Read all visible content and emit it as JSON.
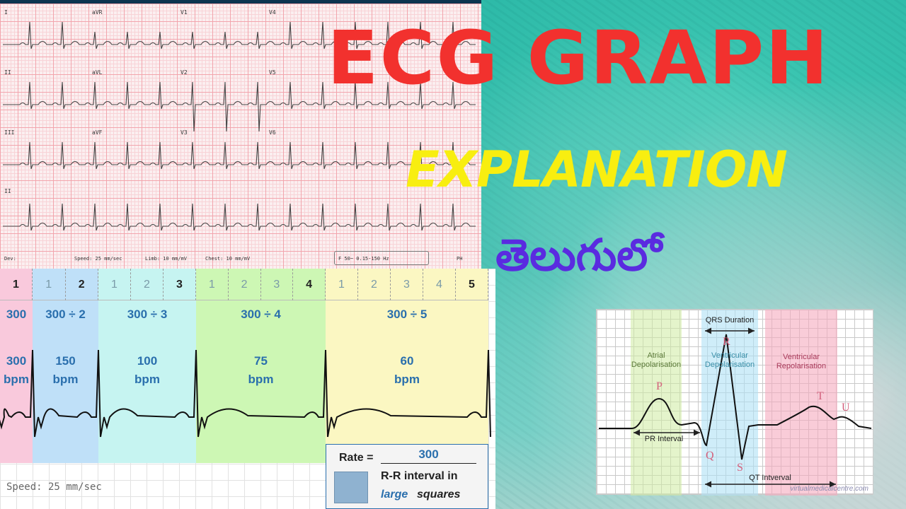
{
  "title": {
    "line1": "ECG GRAPH",
    "line2": "EXPLANATION",
    "line3": "తెలుగులో"
  },
  "ecg_strip": {
    "leads": [
      "I",
      "aVR",
      "V1",
      "V4",
      "II",
      "aVL",
      "V2",
      "V5",
      "III",
      "aVF",
      "V3",
      "V6",
      "II"
    ],
    "footer": {
      "dev": "Dev:",
      "speed": "Speed: 25 mm/sec",
      "limb": "Limb: 10 mm/mV",
      "chest": "Chest: 10 mm/mV",
      "filter": "F 50~ 0.15-150 Hz",
      "page": "PH"
    }
  },
  "rate_chart": {
    "zones": [
      {
        "cells": [
          "1"
        ],
        "formula": "300",
        "bpm": "300",
        "unit": "bpm",
        "color": "#f9c9dc"
      },
      {
        "cells": [
          "1",
          "2"
        ],
        "formula": "300 ÷ 2",
        "bpm": "150",
        "unit": "bpm",
        "color": "#bfe0f8"
      },
      {
        "cells": [
          "1",
          "2",
          "3"
        ],
        "formula": "300 ÷ 3",
        "bpm": "100",
        "unit": "bpm",
        "color": "#c6f4f1"
      },
      {
        "cells": [
          "1",
          "2",
          "3",
          "4"
        ],
        "formula": "300 ÷ 4",
        "bpm": "75",
        "unit": "bpm",
        "color": "#cdf7b4"
      },
      {
        "cells": [
          "1",
          "2",
          "3",
          "4",
          "5"
        ],
        "formula": "300 ÷ 5",
        "bpm": "60",
        "unit": "bpm",
        "color": "#fbf7c2"
      }
    ],
    "speed": "Speed: 25 mm/sec",
    "formula_box": {
      "rate_label": "Rate =",
      "numerator": "300",
      "denominator_line1": "R-R interval in",
      "denominator_em": "large",
      "denominator_rest": "squares",
      "swatch_color": "#8fb2d0"
    }
  },
  "pqrst_diagram": {
    "qrs_duration": "QRS Duration",
    "atrial": "Atrial Depolarisation",
    "ventricular_dep": "Ventricular Depolarisation",
    "ventricular_rep": "Ventricular Repolarisation",
    "pr_interval": "PR Interval",
    "qt_interval": "QT Intverval",
    "waves": [
      "P",
      "Q",
      "R",
      "S",
      "T",
      "U"
    ],
    "credit": "virtualmedicalcentre.com"
  }
}
